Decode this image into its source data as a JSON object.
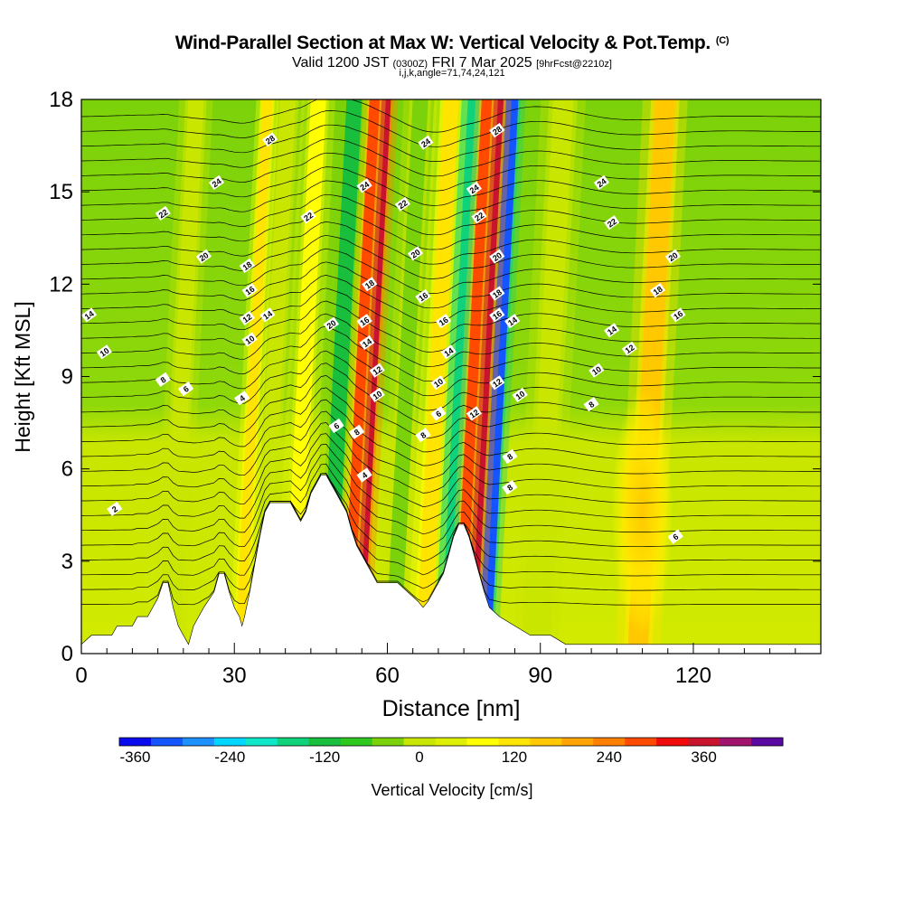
{
  "header": {
    "title": "Wind-Parallel Section at Max W: Vertical Velocity & Pot.Temp.",
    "title_tag": "(C)",
    "subtitle_valid": "Valid 1200 JST",
    "subtitle_utc": "(0300Z)",
    "subtitle_date": "FRI 7 Mar 2025",
    "subtitle_fcst": "[9hrFcst@2210z]",
    "subtitle_grid": "i,j,k,angle=71,74,24,121"
  },
  "chart_data": {
    "type": "heatmap",
    "xlabel": "Distance [nm]",
    "ylabel": "Height [Kft MSL]",
    "xlim": [
      0,
      145
    ],
    "ylim": [
      0,
      18
    ],
    "xticks": [
      0,
      30,
      60,
      90,
      120
    ],
    "yticks": [
      0,
      3,
      6,
      9,
      12,
      15,
      18
    ],
    "terrain_kft": [
      [
        0,
        0.3
      ],
      [
        2,
        0.6
      ],
      [
        6,
        0.6
      ],
      [
        7,
        0.9
      ],
      [
        10,
        0.9
      ],
      [
        11,
        1.2
      ],
      [
        13,
        1.2
      ],
      [
        14,
        1.5
      ],
      [
        15,
        1.8
      ],
      [
        16,
        2.3
      ],
      [
        17,
        2.3
      ],
      [
        18,
        1.5
      ],
      [
        19,
        0.9
      ],
      [
        20,
        0.6
      ],
      [
        21,
        0.3
      ],
      [
        22,
        0.9
      ],
      [
        24,
        1.5
      ],
      [
        26,
        2.0
      ],
      [
        27,
        2.6
      ],
      [
        28,
        2.6
      ],
      [
        29,
        2.0
      ],
      [
        30,
        1.5
      ],
      [
        31,
        1.2
      ],
      [
        31.5,
        0.9
      ],
      [
        32,
        1.2
      ],
      [
        33,
        2.0
      ],
      [
        34,
        2.9
      ],
      [
        35,
        3.8
      ],
      [
        36,
        4.6
      ],
      [
        37,
        4.9
      ],
      [
        41,
        4.9
      ],
      [
        42,
        4.6
      ],
      [
        43,
        4.3
      ],
      [
        44,
        4.6
      ],
      [
        45,
        5.2
      ],
      [
        46,
        5.5
      ],
      [
        47,
        5.8
      ],
      [
        48,
        5.8
      ],
      [
        49,
        5.5
      ],
      [
        50,
        5.2
      ],
      [
        51,
        4.9
      ],
      [
        52,
        4.6
      ],
      [
        53,
        4.0
      ],
      [
        54,
        3.5
      ],
      [
        55,
        3.2
      ],
      [
        56,
        2.9
      ],
      [
        57,
        2.6
      ],
      [
        58,
        2.3
      ],
      [
        60,
        2.3
      ],
      [
        62,
        2.3
      ],
      [
        64,
        2.0
      ],
      [
        66,
        1.7
      ],
      [
        67,
        1.5
      ],
      [
        68,
        1.7
      ],
      [
        69,
        2.0
      ],
      [
        70,
        2.3
      ],
      [
        71,
        2.6
      ],
      [
        72,
        3.2
      ],
      [
        73,
        3.8
      ],
      [
        74,
        4.2
      ],
      [
        75,
        4.2
      ],
      [
        76,
        3.8
      ],
      [
        77,
        3.2
      ],
      [
        78,
        2.6
      ],
      [
        79,
        2.0
      ],
      [
        80,
        1.5
      ],
      [
        82,
        1.2
      ],
      [
        85,
        0.9
      ],
      [
        88,
        0.6
      ],
      [
        92,
        0.6
      ],
      [
        95,
        0.3
      ],
      [
        96,
        0.3
      ],
      [
        98,
        0.3
      ],
      [
        145,
        0.3
      ]
    ],
    "updraft_bands": [
      {
        "x": 55,
        "w": 2.4,
        "value": 330
      },
      {
        "x": 77,
        "w": 2.6,
        "value": 330
      },
      {
        "x": 53,
        "w": 2.0,
        "value": 240
      },
      {
        "x": 75,
        "w": 2.0,
        "value": 240
      },
      {
        "x": 68,
        "w": 3.0,
        "value": 60
      },
      {
        "x": 32,
        "w": 2.0,
        "value": 60
      },
      {
        "x": 42,
        "w": 3.0,
        "value": 30
      },
      {
        "x": 110,
        "w": 4.0,
        "value": 120
      }
    ],
    "downdraft_bands": [
      {
        "x": 49,
        "w": 3.0,
        "value": -180
      },
      {
        "x": 72,
        "w": 4.0,
        "value": -220
      },
      {
        "x": 80,
        "w": 2.4,
        "value": -360
      },
      {
        "x": 62,
        "w": 3.0,
        "value": -90
      },
      {
        "x": 36,
        "w": 3.0,
        "value": -60
      },
      {
        "x": 18,
        "w": 3.0,
        "value": -60
      },
      {
        "x": 90,
        "w": 4.0,
        "value": -60
      }
    ],
    "contour_labels": [
      {
        "x": 1.5,
        "y": 11.0,
        "text": "14"
      },
      {
        "x": 4.5,
        "y": 9.8,
        "text": "10"
      },
      {
        "x": 6.5,
        "y": 4.7,
        "text": "2"
      },
      {
        "x": 16,
        "y": 8.9,
        "text": "8"
      },
      {
        "x": 20.5,
        "y": 8.6,
        "text": "6"
      },
      {
        "x": 16,
        "y": 14.3,
        "text": "22"
      },
      {
        "x": 26.5,
        "y": 15.3,
        "text": "24"
      },
      {
        "x": 37,
        "y": 16.7,
        "text": "28"
      },
      {
        "x": 24,
        "y": 12.9,
        "text": "20"
      },
      {
        "x": 32.5,
        "y": 12.6,
        "text": "18"
      },
      {
        "x": 33,
        "y": 11.8,
        "text": "16"
      },
      {
        "x": 32.5,
        "y": 10.9,
        "text": "12"
      },
      {
        "x": 36.5,
        "y": 11.0,
        "text": "14"
      },
      {
        "x": 33,
        "y": 10.2,
        "text": "10"
      },
      {
        "x": 31.5,
        "y": 8.3,
        "text": "4"
      },
      {
        "x": 44.5,
        "y": 14.2,
        "text": "22"
      },
      {
        "x": 49,
        "y": 10.7,
        "text": "20"
      },
      {
        "x": 50,
        "y": 7.4,
        "text": "6"
      },
      {
        "x": 54,
        "y": 7.2,
        "text": "8"
      },
      {
        "x": 55.5,
        "y": 5.8,
        "text": "4"
      },
      {
        "x": 55.5,
        "y": 15.2,
        "text": "24"
      },
      {
        "x": 56.5,
        "y": 12.0,
        "text": "18"
      },
      {
        "x": 55.5,
        "y": 10.8,
        "text": "16"
      },
      {
        "x": 56,
        "y": 10.1,
        "text": "14"
      },
      {
        "x": 58,
        "y": 9.2,
        "text": "12"
      },
      {
        "x": 58,
        "y": 8.4,
        "text": "10"
      },
      {
        "x": 63,
        "y": 14.6,
        "text": "22"
      },
      {
        "x": 65.5,
        "y": 13.0,
        "text": "20"
      },
      {
        "x": 67,
        "y": 11.6,
        "text": "16"
      },
      {
        "x": 67,
        "y": 7.1,
        "text": "8"
      },
      {
        "x": 70,
        "y": 7.8,
        "text": "6"
      },
      {
        "x": 67.5,
        "y": 16.6,
        "text": "24"
      },
      {
        "x": 71,
        "y": 10.8,
        "text": "16"
      },
      {
        "x": 72,
        "y": 9.8,
        "text": "14"
      },
      {
        "x": 70,
        "y": 8.8,
        "text": "10"
      },
      {
        "x": 77,
        "y": 15.1,
        "text": "24"
      },
      {
        "x": 78,
        "y": 14.2,
        "text": "22"
      },
      {
        "x": 81.5,
        "y": 17.0,
        "text": "28"
      },
      {
        "x": 81.5,
        "y": 12.9,
        "text": "20"
      },
      {
        "x": 81.5,
        "y": 11.7,
        "text": "18"
      },
      {
        "x": 81.5,
        "y": 11.0,
        "text": "16"
      },
      {
        "x": 84.5,
        "y": 10.8,
        "text": "14"
      },
      {
        "x": 81.5,
        "y": 8.8,
        "text": "12"
      },
      {
        "x": 77,
        "y": 7.8,
        "text": "12"
      },
      {
        "x": 84,
        "y": 6.4,
        "text": "8"
      },
      {
        "x": 84,
        "y": 5.4,
        "text": "8"
      },
      {
        "x": 86,
        "y": 8.4,
        "text": "10"
      },
      {
        "x": 101,
        "y": 9.2,
        "text": "10"
      },
      {
        "x": 100,
        "y": 8.1,
        "text": "8"
      },
      {
        "x": 102,
        "y": 15.3,
        "text": "24"
      },
      {
        "x": 104,
        "y": 14.0,
        "text": "22"
      },
      {
        "x": 116,
        "y": 12.9,
        "text": "20"
      },
      {
        "x": 113,
        "y": 11.8,
        "text": "18"
      },
      {
        "x": 117,
        "y": 11.0,
        "text": "16"
      },
      {
        "x": 104,
        "y": 10.5,
        "text": "14"
      },
      {
        "x": 107.5,
        "y": 9.9,
        "text": "12"
      },
      {
        "x": 116.5,
        "y": 3.8,
        "text": "6"
      }
    ],
    "colorbar": {
      "label": "Vertical Velocity [cm/s]",
      "tick_labels": [
        "-360",
        "-240",
        "-120",
        "0",
        "120",
        "240",
        "360"
      ],
      "colors": [
        "#0a0aee",
        "#1455ff",
        "#1e90ff",
        "#00d7ff",
        "#10e6c8",
        "#10d27a",
        "#18be3c",
        "#2ec81e",
        "#7cd20a",
        "#c8e600",
        "#dcf000",
        "#ffff00",
        "#ffe400",
        "#ffc800",
        "#ffa400",
        "#ff8000",
        "#ff4a00",
        "#f00a0a",
        "#c8142d",
        "#a0146e",
        "#5a0aa0"
      ]
    }
  }
}
